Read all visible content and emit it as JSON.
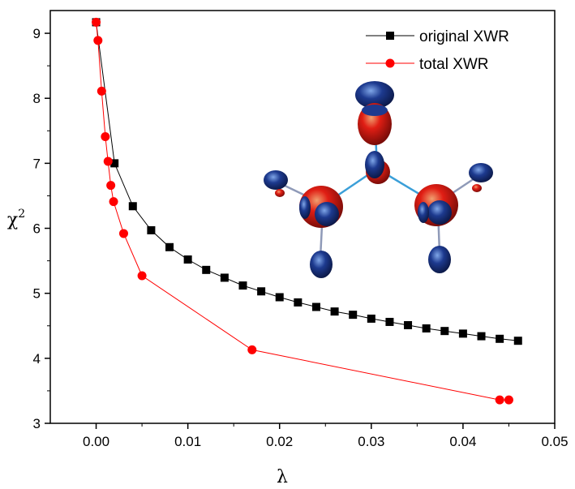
{
  "chart_data": {
    "type": "line",
    "xlabel": "λ",
    "ylabel": "χ",
    "ylabel_superscript": "2",
    "xlim": [
      -0.005,
      0.05
    ],
    "ylim": [
      3,
      9.35
    ],
    "x_ticks": [
      "0.00",
      "0.01",
      "0.02",
      "0.03",
      "0.04",
      "0.05"
    ],
    "y_ticks": [
      "3",
      "4",
      "5",
      "6",
      "7",
      "8",
      "9"
    ],
    "legend_position": "top-right",
    "series": [
      {
        "name": "original XWR",
        "color": "#000000",
        "marker": "square",
        "x": [
          0.0,
          0.002,
          0.004,
          0.006,
          0.008,
          0.01,
          0.012,
          0.014,
          0.016,
          0.018,
          0.02,
          0.022,
          0.024,
          0.026,
          0.028,
          0.03,
          0.032,
          0.034,
          0.036,
          0.038,
          0.04,
          0.042,
          0.044,
          0.046
        ],
        "y": [
          9.17,
          7.0,
          6.34,
          5.97,
          5.71,
          5.52,
          5.36,
          5.24,
          5.12,
          5.03,
          4.94,
          4.86,
          4.79,
          4.72,
          4.67,
          4.61,
          4.56,
          4.51,
          4.46,
          4.42,
          4.38,
          4.34,
          4.3,
          4.27
        ]
      },
      {
        "name": "total XWR",
        "color": "#ff0000",
        "marker": "circle",
        "x": [
          0.0,
          0.0002,
          0.0006,
          0.001,
          0.0013,
          0.0016,
          0.0019,
          0.003,
          0.005,
          0.017,
          0.044,
          0.045
        ],
        "y": [
          9.17,
          8.89,
          8.11,
          7.41,
          7.03,
          6.66,
          6.41,
          5.92,
          5.27,
          4.13,
          3.36,
          3.36
        ]
      }
    ],
    "inset": {
      "icon": "molecule-orbital-isosurface-icon",
      "colors": {
        "positive": "#e01e14",
        "negative": "#1d3a8f",
        "bond": "#3b9fd8"
      }
    }
  }
}
